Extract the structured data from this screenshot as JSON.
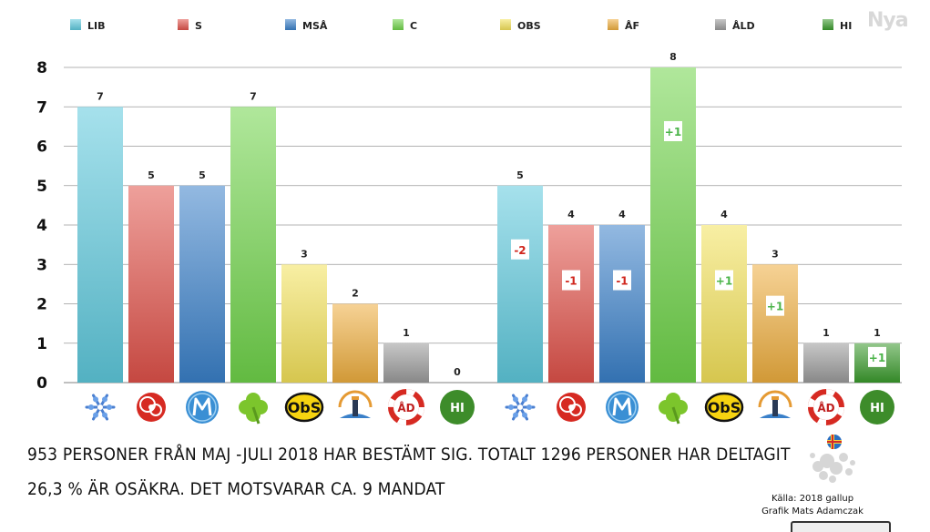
{
  "legend": [
    {
      "code": "LIB",
      "color": "#5ec9dd"
    },
    {
      "code": "S",
      "color": "#e0524a"
    },
    {
      "code": "MSÅ",
      "color": "#3a80c9"
    },
    {
      "code": "C",
      "color": "#6fd34a"
    },
    {
      "code": "OBS",
      "color": "#f3e15a"
    },
    {
      "code": "ÅF",
      "color": "#eeae3e"
    },
    {
      "code": "ÅLD",
      "color": "#9a9a9a"
    },
    {
      "code": "HI",
      "color": "#3a9a2c"
    }
  ],
  "chart_data": {
    "type": "bar",
    "ylim": [
      0,
      8
    ],
    "yticks": [
      "0",
      "1",
      "2",
      "3",
      "4",
      "5",
      "6",
      "7",
      "8"
    ],
    "categories": [
      "LIB",
      "S",
      "MSÅ",
      "C",
      "OBS",
      "ÅF",
      "ÅLD",
      "HI"
    ],
    "series": [
      {
        "values": [
          7,
          5,
          5,
          7,
          3,
          2,
          1,
          0
        ]
      },
      {
        "values": [
          5,
          4,
          4,
          8,
          4,
          3,
          1,
          1
        ],
        "changes": [
          "-2",
          "-1",
          "-1",
          "+1",
          "+1",
          "+1",
          "",
          "+1"
        ]
      }
    ],
    "grid": true
  },
  "logos": [
    {
      "party": "LIB",
      "icon": "snowflake-icon"
    },
    {
      "party": "S",
      "icon": "rose-icon"
    },
    {
      "party": "MSÅ",
      "icon": "m-logo-icon"
    },
    {
      "party": "C",
      "icon": "clover-icon"
    },
    {
      "party": "OBS",
      "icon": "obs-logo-icon",
      "text": "ObS"
    },
    {
      "party": "ÅF",
      "icon": "lighthouse-icon"
    },
    {
      "party": "ÅLD",
      "icon": "lifebuoy-icon",
      "text": "ÅD"
    },
    {
      "party": "HI",
      "icon": "hi-logo-icon",
      "text": "HI"
    }
  ],
  "notes": {
    "line1": "953 personer från maj -juli 2018 har bestämt sig. Totalt 1296 personer har deltagit",
    "line2": "26,3 % ÄR OSÄKRA. DET MOTSVARAR CA. 9 MANDAT"
  },
  "credits": {
    "source": "Källa: 2018 gallup",
    "author": "Grafik Mats Adamczak"
  },
  "colors": {
    "negative": "#d0251c",
    "positive": "#4cb44a",
    "grid": "#9a9a9a"
  }
}
